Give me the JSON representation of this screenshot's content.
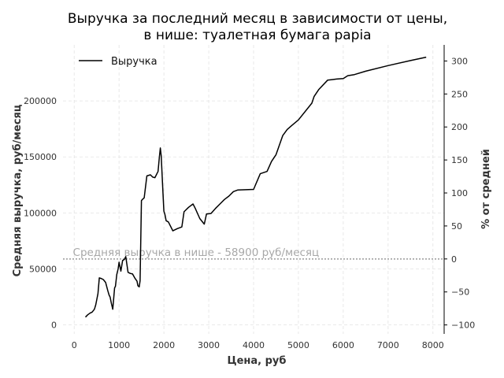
{
  "chart_data": {
    "type": "line",
    "title": "Выручка за последний месяц в зависимости от цены,",
    "subtitle": "в нише: туалетная бумага papia",
    "xlabel": "Цена, руб",
    "ylabel": "Средняя выручка, руб/месяц",
    "y2label": "% от средней",
    "xlim": [
      -250,
      8250
    ],
    "ylim": [
      -8000,
      250000
    ],
    "y2lim": [
      -113.6,
      324.4
    ],
    "x_ticks": [
      0,
      1000,
      2000,
      3000,
      4000,
      5000,
      6000,
      7000,
      8000
    ],
    "x_tick_labels": [
      "0",
      "1000",
      "2000",
      "3000",
      "4000",
      "5000",
      "6000",
      "7000",
      "8000"
    ],
    "y_ticks": [
      0,
      50000,
      100000,
      150000,
      200000
    ],
    "y_tick_labels": [
      "0",
      "50000",
      "100000",
      "150000",
      "200000"
    ],
    "y2_ticks": [
      -100,
      -50,
      0,
      50,
      100,
      150,
      200,
      250,
      300
    ],
    "y2_tick_labels": [
      "−100",
      "−50",
      "0",
      "50",
      "100",
      "150",
      "200",
      "250",
      "300"
    ],
    "grid": true,
    "legend_position": "top-left",
    "reference_line": {
      "value": 58900,
      "label": "Средняя выручка в нише - 58900 руб/месяц"
    },
    "series": [
      {
        "name": "Выручка",
        "color": "#000000",
        "x": [
          250,
          300,
          350,
          400,
          450,
          480,
          530,
          560,
          600,
          650,
          700,
          750,
          780,
          800,
          830,
          860,
          900,
          920,
          950,
          980,
          1000,
          1040,
          1080,
          1120,
          1150,
          1200,
          1250,
          1300,
          1350,
          1400,
          1420,
          1450,
          1470,
          1500,
          1520,
          1560,
          1620,
          1700,
          1750,
          1800,
          1870,
          1900,
          1920,
          1940,
          1980,
          2000,
          2020,
          2050,
          2100,
          2200,
          2300,
          2400,
          2450,
          2550,
          2650,
          2700,
          2800,
          2900,
          2950,
          3050,
          3150,
          3250,
          3350,
          3450,
          3550,
          3650,
          4000,
          4150,
          4300,
          4400,
          4500,
          4650,
          4750,
          4850,
          5000,
          5300,
          5350,
          5450,
          5650,
          5750,
          5850,
          6000,
          6100,
          6250,
          6500,
          7000,
          7500,
          7850
        ],
        "y": [
          7000,
          9000,
          10500,
          11500,
          14000,
          18000,
          28000,
          42000,
          41500,
          40500,
          38000,
          30500,
          26500,
          25000,
          19000,
          14000,
          33000,
          34500,
          45000,
          50000,
          56000,
          48000,
          57500,
          58500,
          61000,
          47000,
          46000,
          45500,
          42000,
          39000,
          35000,
          34000,
          39500,
          111000,
          112000,
          113500,
          133000,
          134000,
          132000,
          131500,
          137000,
          150000,
          158000,
          151000,
          117000,
          101500,
          99000,
          93000,
          92000,
          84000,
          86000,
          87500,
          101000,
          105000,
          108000,
          104000,
          95000,
          90000,
          99000,
          99500,
          104000,
          108000,
          112000,
          115000,
          119000,
          120500,
          121000,
          135000,
          137000,
          146000,
          152000,
          169000,
          174500,
          178000,
          183000,
          198000,
          204000,
          210000,
          218500,
          219000,
          219500,
          220000,
          222500,
          223500,
          226500,
          231500,
          236000,
          239000
        ]
      }
    ]
  }
}
